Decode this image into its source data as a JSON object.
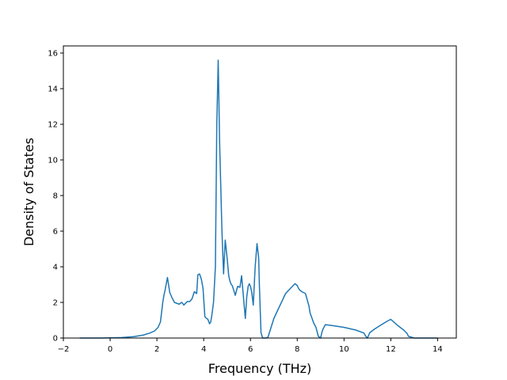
{
  "chart_data": {
    "type": "line",
    "title": "",
    "xlabel": "Frequency (THz)",
    "ylabel": "Density of States",
    "xlim": [
      -2.0,
      14.8
    ],
    "ylim": [
      0,
      16.4
    ],
    "xticks": [
      -2,
      0,
      2,
      4,
      6,
      8,
      10,
      12,
      14
    ],
    "yticks": [
      0,
      2,
      4,
      6,
      8,
      10,
      12,
      14,
      16
    ],
    "grid": false,
    "legend": "none",
    "series": [
      {
        "color": "#1f77b4",
        "x": [
          -1.3,
          -0.5,
          0.0,
          0.5,
          1.0,
          1.4,
          1.7,
          1.9,
          2.05,
          2.15,
          2.25,
          2.3,
          2.35,
          2.45,
          2.55,
          2.65,
          2.75,
          2.85,
          2.95,
          3.05,
          3.1,
          3.15,
          3.2,
          3.3,
          3.4,
          3.5,
          3.6,
          3.7,
          3.75,
          3.82,
          3.9,
          3.97,
          4.05,
          4.12,
          4.18,
          4.25,
          4.3,
          4.35,
          4.42,
          4.5,
          4.56,
          4.62,
          4.68,
          4.72,
          4.78,
          4.85,
          4.92,
          5.0,
          5.07,
          5.12,
          5.18,
          5.22,
          5.28,
          5.35,
          5.45,
          5.55,
          5.62,
          5.68,
          5.72,
          5.78,
          5.84,
          5.9,
          5.95,
          6.0,
          6.05,
          6.12,
          6.2,
          6.28,
          6.35,
          6.38,
          6.45,
          6.52,
          6.58,
          6.62,
          6.66,
          6.75,
          7.0,
          7.5,
          7.9,
          8.0,
          8.05,
          8.1,
          8.2,
          8.35,
          8.5,
          8.55,
          8.62,
          8.7,
          8.8,
          8.9,
          9.0,
          9.05,
          9.1,
          9.2,
          9.5,
          10.0,
          10.5,
          10.85,
          10.93,
          11.0,
          11.1,
          11.3,
          11.6,
          11.85,
          12.0,
          12.3,
          12.55,
          12.7,
          12.75,
          13.0,
          13.5,
          14.0
        ],
        "y": [
          0,
          0,
          0.01,
          0.03,
          0.08,
          0.16,
          0.28,
          0.4,
          0.6,
          0.9,
          2.0,
          2.4,
          2.7,
          3.4,
          2.55,
          2.25,
          2.0,
          1.95,
          1.9,
          2.0,
          1.95,
          1.85,
          1.92,
          2.05,
          2.05,
          2.2,
          2.6,
          2.5,
          3.55,
          3.6,
          3.3,
          2.8,
          1.2,
          1.1,
          1.05,
          0.8,
          0.9,
          1.3,
          2.0,
          4.0,
          12.0,
          15.6,
          11.0,
          9.0,
          6.0,
          3.6,
          5.5,
          4.5,
          3.5,
          3.2,
          3.0,
          2.95,
          2.7,
          2.4,
          2.9,
          2.85,
          3.5,
          2.6,
          2.0,
          1.1,
          2.3,
          2.9,
          3.05,
          2.9,
          2.6,
          1.85,
          4.0,
          5.3,
          4.5,
          3.0,
          0.3,
          0,
          0,
          0,
          0,
          0.05,
          1.1,
          2.5,
          3.05,
          2.95,
          2.8,
          2.7,
          2.6,
          2.5,
          1.8,
          1.4,
          1.15,
          0.85,
          0.6,
          0.1,
          0,
          0.3,
          0.5,
          0.75,
          0.7,
          0.6,
          0.45,
          0.28,
          0.1,
          0,
          0.3,
          0.5,
          0.75,
          0.95,
          1.05,
          0.7,
          0.45,
          0.25,
          0.1,
          0,
          0,
          0
        ]
      }
    ]
  }
}
